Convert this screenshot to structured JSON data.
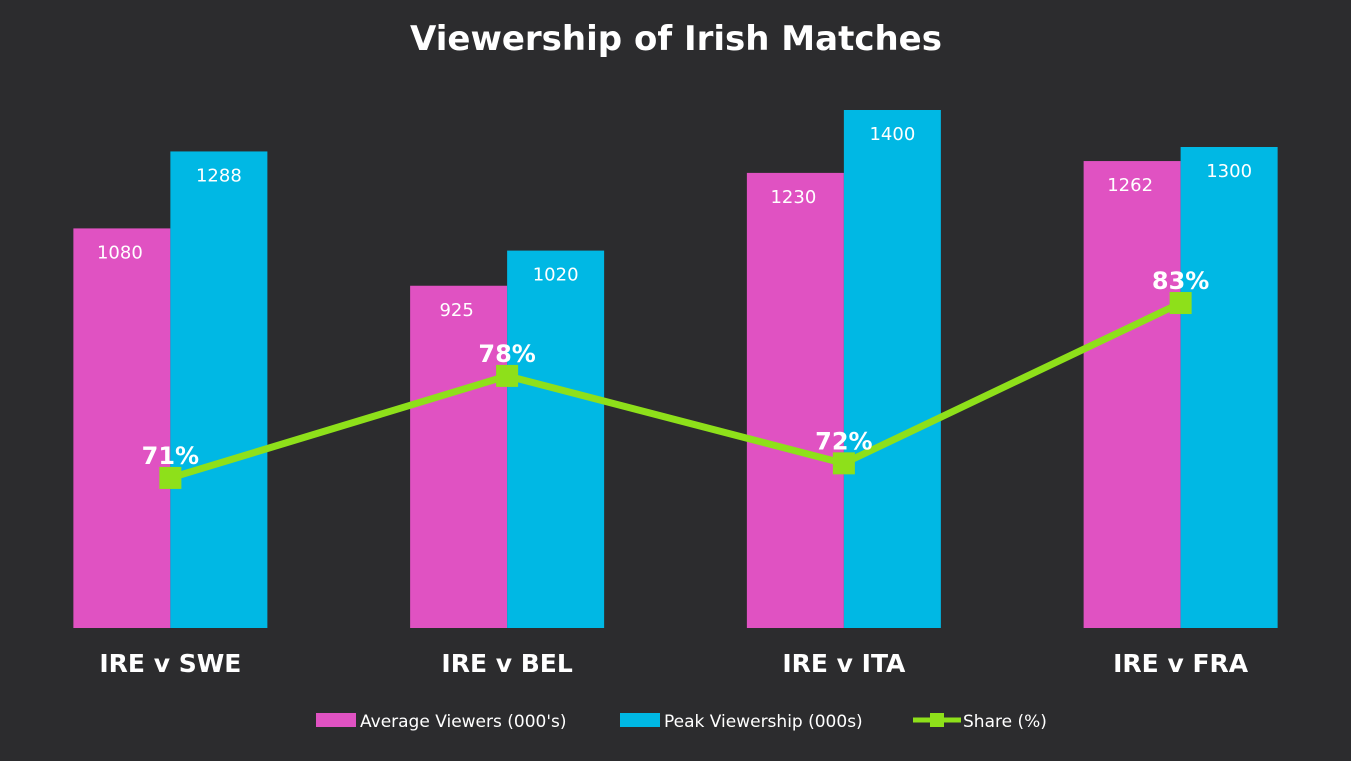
{
  "chart_data": {
    "type": "bar",
    "title": "Viewership of Irish Matches",
    "categories": [
      "IRE v SWE",
      "IRE v BEL",
      "IRE v ITA",
      "IRE v FRA"
    ],
    "series": [
      {
        "name": "Average Viewers (000's)",
        "kind": "bar",
        "color": "#e052c2",
        "values": [
          1080,
          925,
          1230,
          1262
        ],
        "labels": [
          "1080",
          "925",
          "1230",
          "1262"
        ]
      },
      {
        "name": "Peak Viewership (000s)",
        "kind": "bar",
        "color": "#00b8e4",
        "values": [
          1288,
          1020,
          1400,
          1300
        ],
        "labels": [
          "1288",
          "1020",
          "1400",
          "1300"
        ]
      },
      {
        "name": "Share (%)",
        "kind": "line",
        "color": "#8ee01a",
        "values": [
          71,
          78,
          72,
          83
        ],
        "labels": [
          "71%",
          "78%",
          "72%",
          "83%"
        ]
      }
    ],
    "ylim": [
      0,
      1400
    ],
    "secondary_ylim": [
      50,
      90
    ],
    "grid": false,
    "legend_position": "bottom",
    "background": "#2c2c2e"
  }
}
